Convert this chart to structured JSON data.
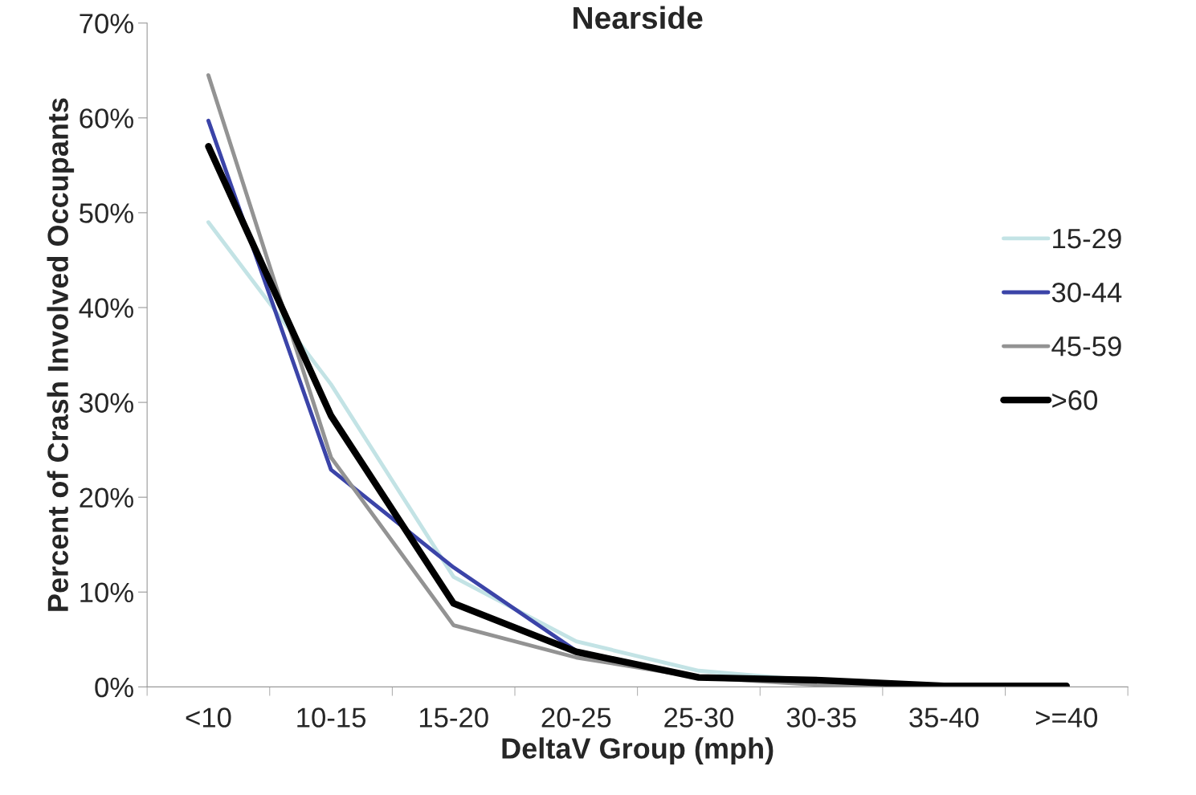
{
  "chart_data": {
    "type": "line",
    "title": "Nearside",
    "xlabel": "DeltaV Group (mph)",
    "ylabel": "Percent of Crash Involved Occupants",
    "categories": [
      "<10",
      "10-15",
      "15-20",
      "20-25",
      "25-30",
      "30-35",
      "35-40",
      ">=40"
    ],
    "series": [
      {
        "name": "15-29",
        "color": "#c3e3e5",
        "values": [
          49.0,
          31.9,
          11.6,
          4.8,
          1.7,
          0.6,
          0.2,
          0.1
        ]
      },
      {
        "name": "30-44",
        "color": "#3b44a8",
        "values": [
          59.7,
          22.9,
          12.6,
          3.8,
          1.0,
          null,
          null,
          null
        ]
      },
      {
        "name": "45-59",
        "color": "#939393",
        "values": [
          64.5,
          24.2,
          6.5,
          3.1,
          1.0,
          0.2,
          0.1,
          0.1
        ]
      },
      {
        "name": ">60",
        "color": "#000000",
        "values": [
          57.0,
          28.6,
          8.8,
          3.7,
          1.0,
          0.7,
          0.1,
          0.1
        ]
      }
    ],
    "ylim": [
      0,
      70
    ],
    "yticks": [
      {
        "value": 0,
        "label": "0%"
      },
      {
        "value": 10,
        "label": "10%"
      },
      {
        "value": 20,
        "label": "20%"
      },
      {
        "value": 30,
        "label": "30%"
      },
      {
        "value": 40,
        "label": "40%"
      },
      {
        "value": 50,
        "label": "50%"
      },
      {
        "value": 60,
        "label": "60%"
      },
      {
        "value": 70,
        "label": "70%"
      }
    ],
    "grid": false,
    "legend": "right",
    "marker": "none",
    "line_style": "solid"
  }
}
